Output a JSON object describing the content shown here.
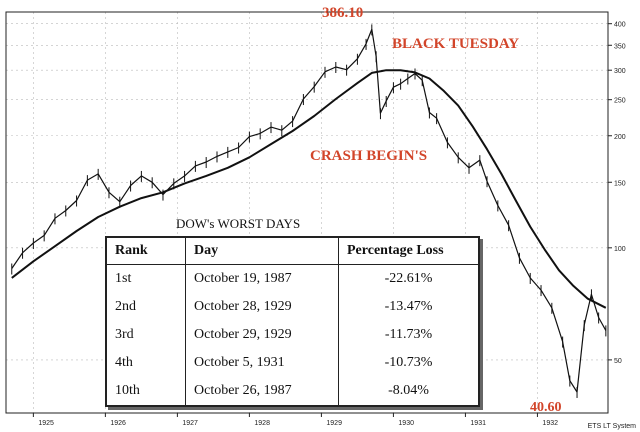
{
  "chart_data": {
    "type": "line",
    "title": "",
    "xlabel": "",
    "ylabel": "",
    "y_scale": "log",
    "ylim": [
      36,
      430
    ],
    "y_ticks": [
      50,
      100,
      150,
      200,
      250,
      300,
      350,
      400
    ],
    "x_tick_labels": [
      "1925",
      "1926",
      "1927",
      "1928",
      "1929",
      "1930",
      "1931",
      "1932"
    ],
    "grid": true,
    "series": [
      {
        "kind": "price",
        "x": [
          1924.7,
          1924.85,
          1925.0,
          1925.15,
          1925.3,
          1925.45,
          1925.6,
          1925.75,
          1925.9,
          1926.05,
          1926.2,
          1926.35,
          1926.5,
          1926.65,
          1926.8,
          1926.95,
          1927.1,
          1927.25,
          1927.4,
          1927.55,
          1927.7,
          1927.85,
          1928.0,
          1928.15,
          1928.3,
          1928.45,
          1928.6,
          1928.75,
          1928.9,
          1929.05,
          1929.2,
          1929.35,
          1929.5,
          1929.62,
          1929.7,
          1929.76,
          1929.82,
          1929.9,
          1930.0,
          1930.1,
          1930.2,
          1930.3,
          1930.4,
          1930.5,
          1930.6,
          1930.75,
          1930.9,
          1931.05,
          1931.2,
          1931.3,
          1931.45,
          1931.6,
          1931.75,
          1931.9,
          1932.05,
          1932.2,
          1932.35,
          1932.45,
          1932.55,
          1932.65,
          1932.75,
          1932.85,
          1932.95
        ],
        "y": [
          88,
          97,
          103,
          108,
          120,
          126,
          134,
          152,
          158,
          141,
          133,
          147,
          156,
          150,
          139,
          149,
          156,
          166,
          170,
          176,
          181,
          186,
          199,
          203,
          211,
          207,
          219,
          251,
          271,
          297,
          306,
          301,
          322,
          353,
          386.1,
          327,
          230,
          248,
          270,
          276,
          285,
          294,
          282,
          231,
          223,
          192,
          175,
          164,
          172,
          151,
          130,
          115,
          94,
          83,
          77,
          69,
          56,
          44,
          41,
          62,
          75,
          65,
          60
        ]
      },
      {
        "kind": "moving-average",
        "x": [
          1924.7,
          1925.0,
          1925.3,
          1925.6,
          1925.9,
          1926.2,
          1926.5,
          1926.8,
          1927.1,
          1927.4,
          1927.7,
          1928.0,
          1928.3,
          1928.6,
          1928.9,
          1929.2,
          1929.5,
          1929.7,
          1929.9,
          1930.1,
          1930.3,
          1930.5,
          1930.7,
          1930.9,
          1931.1,
          1931.3,
          1931.5,
          1931.7,
          1931.9,
          1932.1,
          1932.3,
          1932.5,
          1932.7,
          1932.95
        ],
        "y": [
          83,
          92,
          101,
          111,
          121,
          129,
          136,
          141,
          149,
          156,
          164,
          175,
          190,
          206,
          226,
          251,
          277,
          295,
          300,
          300,
          296,
          285,
          264,
          241,
          212,
          184,
          158,
          134,
          114,
          99,
          87,
          79,
          73,
          69
        ]
      }
    ],
    "annotations": {
      "peak": "386.10",
      "black_tuesday": "BLACK TUESDAY",
      "crash": "CRASH BEGIN'S",
      "low": "40.60"
    },
    "table": {
      "title": "DOW's WORST DAYS",
      "headers": [
        "Rank",
        "Day",
        "Percentage Loss"
      ],
      "rows": [
        [
          "1st",
          "October 19, 1987",
          "-22.61%"
        ],
        [
          "2nd",
          "October 28, 1929",
          "-13.47%"
        ],
        [
          "3rd",
          "October 29, 1929",
          "-11.73%"
        ],
        [
          "4th",
          "October 5, 1931",
          "-10.73%"
        ],
        [
          "10th",
          "October 26, 1987",
          "-8.04%"
        ]
      ]
    },
    "brand": "ETS LT System"
  }
}
